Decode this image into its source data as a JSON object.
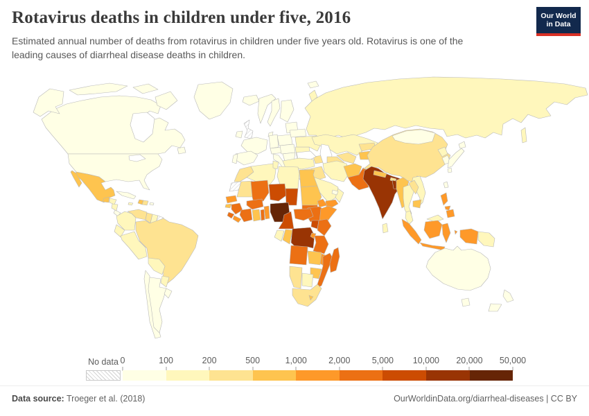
{
  "header": {
    "title": "Rotavirus deaths in children under five, 2016",
    "subtitle": "Estimated annual number of deaths from rotavirus in children under five years old. Rotavirus is one of the leading causes of diarrheal disease deaths in children.",
    "logo": {
      "line1": "Our World",
      "line2": "in Data",
      "bg_color": "#12294d",
      "accent_color": "#d93025"
    }
  },
  "legend": {
    "no_data_label": "No data",
    "tick_labels": [
      "0",
      "100",
      "200",
      "500",
      "1,000",
      "2,000",
      "5,000",
      "10,000",
      "20,000",
      "50,000"
    ],
    "bin_colors": [
      "#ffffe5",
      "#fff7bc",
      "#fee391",
      "#fec44f",
      "#fe9929",
      "#ec7014",
      "#cc4c02",
      "#993404",
      "#662506"
    ]
  },
  "footer": {
    "source_label": "Data source:",
    "source_value": " Troeger et al. (2018)",
    "credit": "OurWorldinData.org/diarrheal-diseases | CC BY"
  },
  "chart_data": {
    "type": "heatmap",
    "subtype": "choropleth-world-map",
    "title": "Rotavirus deaths in children under five, 2016",
    "unit": "deaths per year",
    "year": 2016,
    "color_scheme": "YlOrBr-9",
    "bins": [
      {
        "range": "0-100",
        "color": "#ffffe5"
      },
      {
        "range": "100-200",
        "color": "#fff7bc"
      },
      {
        "range": "200-500",
        "color": "#fee391"
      },
      {
        "range": "500-1,000",
        "color": "#fec44f"
      },
      {
        "range": "1,000-2,000",
        "color": "#fe9929"
      },
      {
        "range": "2,000-5,000",
        "color": "#ec7014"
      },
      {
        "range": "5,000-10,000",
        "color": "#cc4c02"
      },
      {
        "range": "10,000-20,000",
        "color": "#993404"
      },
      {
        "range": "20,000-50,000",
        "color": "#662506"
      }
    ],
    "no_data_style": "diagonal-hatch",
    "countries": [
      {
        "id": "canada",
        "name": "Canada",
        "bin": 1
      },
      {
        "id": "united-states",
        "name": "United States",
        "bin": 1
      },
      {
        "id": "greenland",
        "name": "Greenland",
        "bin": 1
      },
      {
        "id": "mexico",
        "name": "Mexico",
        "bin": 4
      },
      {
        "id": "guatemala",
        "name": "Guatemala",
        "bin": 4
      },
      {
        "id": "honduras",
        "name": "Honduras",
        "bin": 2
      },
      {
        "id": "nicaragua",
        "name": "Nicaragua",
        "bin": 2
      },
      {
        "id": "costa-rica",
        "name": "Costa Rica",
        "bin": 1
      },
      {
        "id": "panama",
        "name": "Panama",
        "bin": 1
      },
      {
        "id": "cuba",
        "name": "Cuba",
        "bin": 1
      },
      {
        "id": "jamaica",
        "name": "Jamaica",
        "bin": 2
      },
      {
        "id": "haiti",
        "name": "Haiti",
        "bin": 4
      },
      {
        "id": "dominican-republic",
        "name": "Dominican Republic",
        "bin": 3
      },
      {
        "id": "puerto-rico",
        "name": "Puerto Rico",
        "bin": 1
      },
      {
        "id": "colombia",
        "name": "Colombia",
        "bin": 2
      },
      {
        "id": "venezuela",
        "name": "Venezuela",
        "bin": 3
      },
      {
        "id": "guyana",
        "name": "Guyana",
        "bin": 3
      },
      {
        "id": "suriname",
        "name": "Suriname",
        "bin": 2
      },
      {
        "id": "french-guiana",
        "name": "French Guiana",
        "bin": "no_data"
      },
      {
        "id": "ecuador",
        "name": "Ecuador",
        "bin": 2
      },
      {
        "id": "peru",
        "name": "Peru",
        "bin": 2
      },
      {
        "id": "brazil",
        "name": "Brazil",
        "bin": 3
      },
      {
        "id": "bolivia",
        "name": "Bolivia",
        "bin": 2
      },
      {
        "id": "paraguay",
        "name": "Paraguay",
        "bin": 2
      },
      {
        "id": "chile",
        "name": "Chile",
        "bin": 1
      },
      {
        "id": "argentina",
        "name": "Argentina",
        "bin": 1
      },
      {
        "id": "uruguay",
        "name": "Uruguay",
        "bin": 1
      },
      {
        "id": "iceland",
        "name": "Iceland",
        "bin": 1
      },
      {
        "id": "united-kingdom",
        "name": "United Kingdom",
        "bin": "no_data"
      },
      {
        "id": "ireland",
        "name": "Ireland",
        "bin": 1
      },
      {
        "id": "norway",
        "name": "Norway",
        "bin": 1
      },
      {
        "id": "sweden",
        "name": "Sweden",
        "bin": 1
      },
      {
        "id": "finland",
        "name": "Finland",
        "bin": 1
      },
      {
        "id": "denmark",
        "name": "Denmark",
        "bin": 1
      },
      {
        "id": "baltic-states",
        "name": "Baltic states",
        "bin": 1
      },
      {
        "id": "poland",
        "name": "Poland",
        "bin": 1
      },
      {
        "id": "germany",
        "name": "Germany",
        "bin": 1
      },
      {
        "id": "france",
        "name": "France",
        "bin": 1
      },
      {
        "id": "spain",
        "name": "Spain",
        "bin": 1
      },
      {
        "id": "portugal",
        "name": "Portugal",
        "bin": 1
      },
      {
        "id": "alpine-europe",
        "name": "Switzerland / Austria",
        "bin": 1
      },
      {
        "id": "central-europe",
        "name": "Czechia / Slovakia / Hungary",
        "bin": 1
      },
      {
        "id": "italy",
        "name": "Italy",
        "bin": 1
      },
      {
        "id": "balkans",
        "name": "Balkans",
        "bin": 1
      },
      {
        "id": "greece",
        "name": "Greece",
        "bin": 1
      },
      {
        "id": "romania",
        "name": "Romania",
        "bin": 2
      },
      {
        "id": "bulgaria",
        "name": "Bulgaria",
        "bin": 1
      },
      {
        "id": "ukraine",
        "name": "Ukraine",
        "bin": 2
      },
      {
        "id": "belarus",
        "name": "Belarus",
        "bin": 1
      },
      {
        "id": "russia",
        "name": "Russia",
        "bin": 2
      },
      {
        "id": "kazakhstan",
        "name": "Kazakhstan",
        "bin": 2
      },
      {
        "id": "caucasus",
        "name": "Caucasus",
        "bin": 3
      },
      {
        "id": "turkey",
        "name": "Turkey",
        "bin": 2
      },
      {
        "id": "syria",
        "name": "Syria",
        "bin": 3
      },
      {
        "id": "iraq",
        "name": "Iraq",
        "bin": 3
      },
      {
        "id": "jordan",
        "name": "Jordan",
        "bin": 2
      },
      {
        "id": "israel",
        "name": "Israel",
        "bin": 1
      },
      {
        "id": "saudi-arabia",
        "name": "Saudi Arabia",
        "bin": 2
      },
      {
        "id": "yemen",
        "name": "Yemen",
        "bin": 5
      },
      {
        "id": "oman",
        "name": "Oman",
        "bin": 2
      },
      {
        "id": "united-arab-emirates",
        "name": "United Arab Emirates",
        "bin": 1
      },
      {
        "id": "iran",
        "name": "Iran",
        "bin": 2
      },
      {
        "id": "uzbekistan",
        "name": "Uzbekistan",
        "bin": 3
      },
      {
        "id": "turkmenistan",
        "name": "Turkmenistan",
        "bin": 3
      },
      {
        "id": "kyrgyzstan",
        "name": "Kyrgyzstan",
        "bin": 3
      },
      {
        "id": "tajikistan",
        "name": "Tajikistan",
        "bin": 4
      },
      {
        "id": "afghanistan",
        "name": "Afghanistan",
        "bin": 4
      },
      {
        "id": "pakistan",
        "name": "Pakistan",
        "bin": 6
      },
      {
        "id": "india",
        "name": "India",
        "bin": 8
      },
      {
        "id": "nepal",
        "name": "Nepal",
        "bin": 4
      },
      {
        "id": "bhutan",
        "name": "Bhutan",
        "bin": 3
      },
      {
        "id": "bangladesh",
        "name": "Bangladesh",
        "bin": 8
      },
      {
        "id": "sri-lanka",
        "name": "Sri Lanka",
        "bin": 2
      },
      {
        "id": "myanmar",
        "name": "Myanmar",
        "bin": 4
      },
      {
        "id": "china",
        "name": "China",
        "bin": 3
      },
      {
        "id": "mongolia",
        "name": "Mongolia",
        "bin": 1
      },
      {
        "id": "north-korea",
        "name": "North Korea",
        "bin": 2
      },
      {
        "id": "south-korea",
        "name": "South Korea",
        "bin": 1
      },
      {
        "id": "japan",
        "name": "Japan",
        "bin": 1
      },
      {
        "id": "taiwan",
        "name": "Taiwan",
        "bin": 1
      },
      {
        "id": "laos",
        "name": "Laos",
        "bin": 3
      },
      {
        "id": "vietnam",
        "name": "Vietnam",
        "bin": 2
      },
      {
        "id": "thailand",
        "name": "Thailand",
        "bin": 2
      },
      {
        "id": "cambodia",
        "name": "Cambodia",
        "bin": 4
      },
      {
        "id": "malaysia",
        "name": "Malaysia",
        "bin": 2
      },
      {
        "id": "indonesia",
        "name": "Indonesia",
        "bin": 5
      },
      {
        "id": "papua-new-guinea",
        "name": "Papua New Guinea",
        "bin": 2
      },
      {
        "id": "philippines",
        "name": "Philippines",
        "bin": 5
      },
      {
        "id": "australia",
        "name": "Australia",
        "bin": 1
      },
      {
        "id": "new-zealand",
        "name": "New Zealand",
        "bin": 1
      },
      {
        "id": "morocco",
        "name": "Morocco",
        "bin": 3
      },
      {
        "id": "western-sahara",
        "name": "Western Sahara",
        "bin": "no_data"
      },
      {
        "id": "mauritania",
        "name": "Mauritania",
        "bin": 3
      },
      {
        "id": "algeria",
        "name": "Algeria",
        "bin": 2
      },
      {
        "id": "tunisia",
        "name": "Tunisia",
        "bin": 2
      },
      {
        "id": "libya",
        "name": "Libya",
        "bin": 2
      },
      {
        "id": "egypt",
        "name": "Egypt",
        "bin": 4
      },
      {
        "id": "mali",
        "name": "Mali",
        "bin": 6
      },
      {
        "id": "niger",
        "name": "Niger",
        "bin": 7
      },
      {
        "id": "chad",
        "name": "Chad",
        "bin": 7
      },
      {
        "id": "sudan",
        "name": "Sudan",
        "bin": 4
      },
      {
        "id": "eritrea",
        "name": "Eritrea",
        "bin": 5
      },
      {
        "id": "ethiopia",
        "name": "Ethiopia",
        "bin": 6
      },
      {
        "id": "somalia",
        "name": "Somalia",
        "bin": 5
      },
      {
        "id": "south-sudan",
        "name": "South Sudan",
        "bin": 6
      },
      {
        "id": "senegal",
        "name": "Senegal",
        "bin": 5
      },
      {
        "id": "guinea-bissau",
        "name": "Guinea-Bissau",
        "bin": 4
      },
      {
        "id": "guinea",
        "name": "Guinea",
        "bin": 6
      },
      {
        "id": "sierra-leone",
        "name": "Sierra Leone",
        "bin": 6
      },
      {
        "id": "liberia",
        "name": "Liberia",
        "bin": 5
      },
      {
        "id": "cote-divoire",
        "name": "Cote d'Ivoire",
        "bin": 6
      },
      {
        "id": "ghana",
        "name": "Ghana",
        "bin": 4
      },
      {
        "id": "burkina-faso",
        "name": "Burkina Faso",
        "bin": 6
      },
      {
        "id": "togo",
        "name": "Togo",
        "bin": 6
      },
      {
        "id": "benin",
        "name": "Benin",
        "bin": 5
      },
      {
        "id": "nigeria",
        "name": "Nigeria",
        "bin": 9
      },
      {
        "id": "cameroon",
        "name": "Cameroon",
        "bin": 7
      },
      {
        "id": "central-african-republic",
        "name": "Central African Republic",
        "bin": 6
      },
      {
        "id": "gabon",
        "name": "Gabon",
        "bin": 2
      },
      {
        "id": "congo",
        "name": "Congo",
        "bin": 4
      },
      {
        "id": "democratic-republic-of-congo",
        "name": "Democratic Republic of Congo",
        "bin": 8
      },
      {
        "id": "uganda",
        "name": "Uganda",
        "bin": 7
      },
      {
        "id": "kenya",
        "name": "Kenya",
        "bin": 6
      },
      {
        "id": "rwanda-burundi",
        "name": "Rwanda / Burundi",
        "bin": 5
      },
      {
        "id": "tanzania",
        "name": "Tanzania",
        "bin": 6
      },
      {
        "id": "angola",
        "name": "Angola",
        "bin": 6
      },
      {
        "id": "zambia",
        "name": "Zambia",
        "bin": 4
      },
      {
        "id": "malawi",
        "name": "Malawi",
        "bin": 5
      },
      {
        "id": "mozambique",
        "name": "Mozambique",
        "bin": 6
      },
      {
        "id": "zimbabwe",
        "name": "Zimbabwe",
        "bin": 4
      },
      {
        "id": "botswana",
        "name": "Botswana",
        "bin": 2
      },
      {
        "id": "namibia",
        "name": "Namibia",
        "bin": 3
      },
      {
        "id": "south-africa",
        "name": "South Africa",
        "bin": 3
      },
      {
        "id": "lesotho",
        "name": "Lesotho",
        "bin": 4
      },
      {
        "id": "madagascar",
        "name": "Madagascar",
        "bin": 6
      }
    ]
  }
}
